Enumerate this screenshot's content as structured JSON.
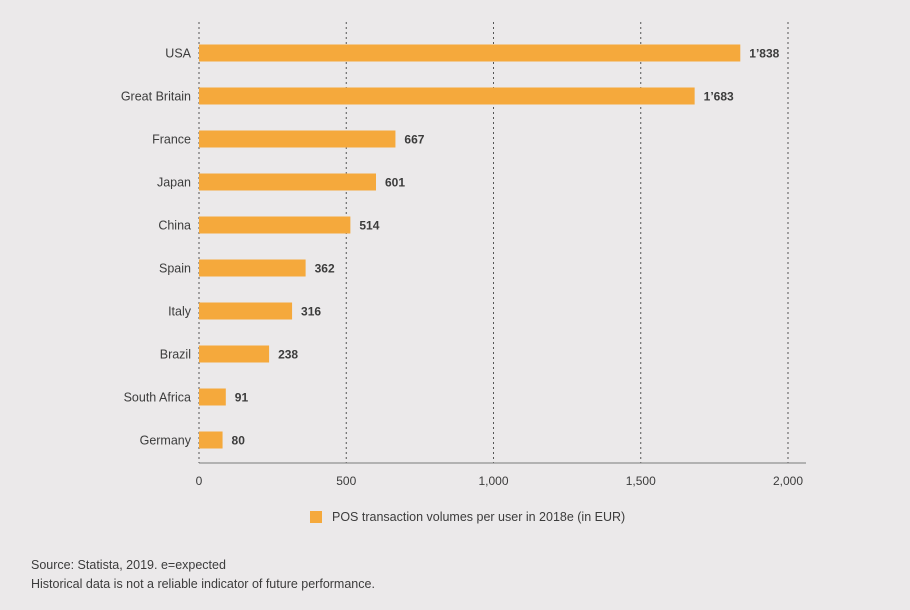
{
  "chart_data": {
    "type": "bar",
    "orientation": "horizontal",
    "categories": [
      "USA",
      "Great Britain",
      "France",
      "Japan",
      "China",
      "Spain",
      "Italy",
      "Brazil",
      "South Africa",
      "Germany"
    ],
    "values": [
      1838,
      1683,
      667,
      601,
      514,
      362,
      316,
      238,
      91,
      80
    ],
    "value_labels": [
      "1’838",
      "1’683",
      "667",
      "601",
      "514",
      "362",
      "316",
      "238",
      "91",
      "80"
    ],
    "x_ticks": [
      0,
      500,
      1000,
      1500,
      2000
    ],
    "x_tick_labels": [
      "0",
      "500",
      "1,000",
      "1,500",
      "2,000"
    ],
    "xlim": [
      0,
      2000
    ],
    "grid": "vertical dotted",
    "series_name": "POS transaction volumes per user in 2018e (in EUR)",
    "bar_color": "#f5a93c"
  },
  "legend": {
    "label": "POS transaction volumes per user in 2018e (in EUR)",
    "swatch_color": "#f5a93c"
  },
  "footnote": {
    "source": "Source: Statista, 2019. e=expected",
    "disclaimer": "Historical data is not a reliable indicator of future performance."
  }
}
